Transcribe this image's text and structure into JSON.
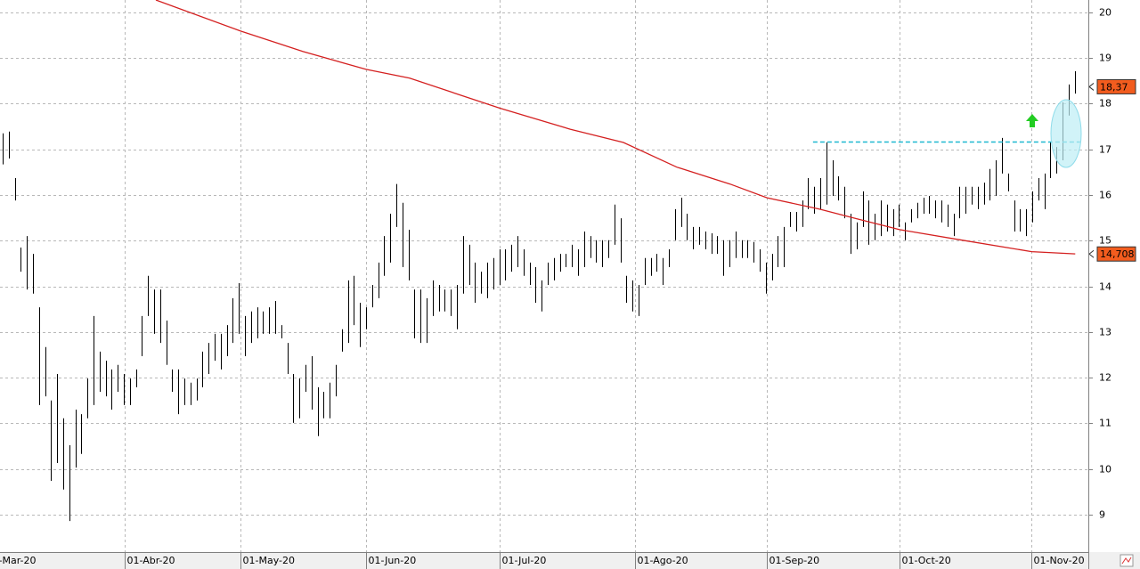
{
  "chart_data": {
    "type": "ohlc",
    "xlim": [
      -0.44,
      179.26
    ],
    "ylim": [
      8.18,
      20.27
    ],
    "yticks": [
      9,
      10,
      11,
      12,
      13,
      14,
      15,
      16,
      17,
      18,
      19,
      20
    ],
    "xticks": [
      {
        "value": -1,
        "label": "-Mar-20"
      },
      {
        "value": 20.1,
        "label": "01-Abr-20"
      },
      {
        "value": 39.3,
        "label": "01-May-20"
      },
      {
        "value": 60,
        "label": "01-Jun-20"
      },
      {
        "value": 82.1,
        "label": "01-Jul-20"
      },
      {
        "value": 104.4,
        "label": "01-Ago-20"
      },
      {
        "value": 126.2,
        "label": "01-Sep-20"
      },
      {
        "value": 148.1,
        "label": "01-Oct-20"
      },
      {
        "value": 169.9,
        "label": "01-Nov-20"
      }
    ],
    "grid": true,
    "bars": {
      "color": "#000000",
      "high": [
        17.35,
        17.39,
        16.37,
        14.85,
        15.1,
        14.71,
        13.54,
        12.67,
        11.5,
        12.08,
        11.11,
        10.52,
        11.3,
        11.2,
        11.98,
        13.35,
        12.57,
        12.37,
        12.18,
        12.28,
        12.08,
        11.98,
        12.18,
        13.35,
        14.23,
        13.93,
        13.93,
        13.25,
        12.18,
        12.18,
        11.98,
        11.89,
        11.98,
        12.57,
        12.76,
        12.96,
        12.96,
        13.15,
        13.74,
        14.07,
        13.35,
        13.45,
        13.54,
        13.45,
        13.54,
        13.68,
        13.15,
        12.76,
        12.08,
        11.98,
        12.28,
        12.47,
        11.79,
        11.69,
        11.89,
        12.28,
        13.06,
        14.13,
        14.23,
        13.64,
        13.54,
        14.03,
        14.52,
        15.1,
        15.59,
        16.24,
        15.83,
        15.24,
        13.93,
        13.93,
        13.74,
        14.13,
        14.03,
        13.93,
        13.93,
        14.03,
        15.1,
        14.91,
        14.52,
        14.32,
        14.52,
        14.62,
        14.81,
        14.81,
        14.91,
        15.1,
        14.81,
        14.52,
        14.42,
        14.13,
        14.52,
        14.62,
        14.71,
        14.71,
        14.91,
        14.81,
        15.2,
        15.1,
        15.01,
        15.01,
        15.01,
        15.79,
        15.49,
        14.23,
        14.13,
        14.03,
        14.62,
        14.62,
        14.71,
        14.62,
        14.81,
        15.69,
        15.94,
        15.59,
        15.3,
        15.3,
        15.2,
        15.16,
        15.1,
        15.01,
        15.01,
        15.2,
        15.01,
        15.01,
        14.97,
        14.81,
        14.52,
        14.71,
        15.1,
        15.3,
        15.63,
        15.63,
        15.88,
        16.37,
        16.18,
        16.37,
        17.15,
        16.76,
        16.41,
        16.18,
        15.59,
        15.4,
        16.08,
        15.88,
        15.59,
        15.88,
        15.79,
        15.69,
        15.79,
        15.4,
        15.69,
        15.83,
        15.94,
        15.98,
        15.88,
        15.88,
        15.79,
        15.59,
        16.18,
        16.18,
        16.18,
        16.18,
        16.27,
        16.57,
        16.76,
        17.25,
        16.47,
        15.88,
        15.69,
        15.69,
        16.08,
        16.37,
        16.47,
        17.15,
        17.05,
        18.03,
        18.42,
        18.71
      ],
      "low": [
        16.67,
        16.8,
        15.88,
        14.32,
        13.93,
        13.84,
        11.4,
        11.59,
        9.74,
        10.13,
        9.55,
        8.86,
        10.03,
        10.33,
        11.11,
        11.4,
        11.69,
        11.59,
        11.3,
        11.69,
        11.4,
        11.4,
        11.79,
        12.47,
        13.35,
        12.96,
        12.76,
        12.28,
        11.69,
        11.2,
        11.4,
        11.4,
        11.5,
        11.79,
        12.08,
        12.37,
        12.18,
        12.47,
        12.76,
        12.96,
        12.47,
        12.76,
        12.86,
        12.96,
        12.96,
        12.96,
        12.86,
        12.08,
        11.01,
        11.11,
        11.69,
        11.3,
        10.72,
        11.11,
        11.11,
        11.59,
        12.57,
        12.76,
        13.15,
        12.67,
        13.06,
        13.54,
        13.74,
        14.23,
        14.52,
        15.3,
        14.42,
        14.13,
        12.86,
        12.76,
        12.76,
        13.35,
        13.45,
        13.45,
        13.35,
        13.06,
        13.84,
        14.03,
        13.64,
        13.84,
        13.74,
        13.93,
        14.03,
        14.13,
        14.32,
        14.42,
        14.23,
        14.03,
        13.64,
        13.45,
        14.03,
        14.13,
        14.32,
        14.42,
        14.42,
        14.23,
        14.42,
        14.62,
        14.52,
        14.42,
        14.62,
        14.91,
        14.52,
        13.64,
        13.45,
        13.35,
        14.03,
        14.23,
        14.32,
        14.03,
        14.42,
        15.01,
        15.3,
        15.01,
        14.81,
        14.91,
        14.81,
        14.71,
        14.71,
        14.23,
        14.42,
        14.62,
        14.62,
        14.62,
        14.52,
        14.32,
        13.84,
        14.13,
        14.42,
        14.42,
        15.3,
        15.2,
        15.3,
        15.69,
        15.59,
        15.69,
        15.79,
        15.98,
        15.88,
        15.49,
        14.71,
        14.81,
        15.3,
        14.91,
        15.01,
        15.1,
        15.2,
        15.1,
        15.3,
        15.01,
        15.4,
        15.49,
        15.59,
        15.59,
        15.49,
        15.4,
        15.3,
        15.1,
        15.49,
        15.59,
        15.79,
        15.69,
        15.79,
        15.88,
        15.98,
        16.47,
        16.08,
        15.2,
        15.2,
        15.1,
        15.4,
        15.88,
        15.69,
        16.37,
        16.47,
        16.76,
        17.74,
        18.22
      ]
    },
    "moving_average": {
      "color": "#d42020",
      "x": [
        25.3,
        39.3,
        49.6,
        60,
        67.2,
        76,
        82.1,
        93.7,
        102.5,
        111.3,
        120.1,
        126.2,
        134.9,
        140.7,
        148.1,
        158.4,
        169.9,
        177.1
      ],
      "values": [
        20.27,
        19.59,
        19.14,
        18.75,
        18.56,
        18.17,
        17.9,
        17.44,
        17.15,
        16.61,
        16.24,
        15.94,
        15.69,
        15.49,
        15.24,
        15.01,
        14.76,
        14.71
      ]
    },
    "resistance": {
      "color": "#1fb8d0",
      "value": 17.17,
      "x": [
        133.8,
        177.9
      ]
    },
    "price_labels": [
      {
        "value": 18.37,
        "label": "18,37"
      },
      {
        "value": 14.708,
        "label": "14,708"
      }
    ]
  }
}
